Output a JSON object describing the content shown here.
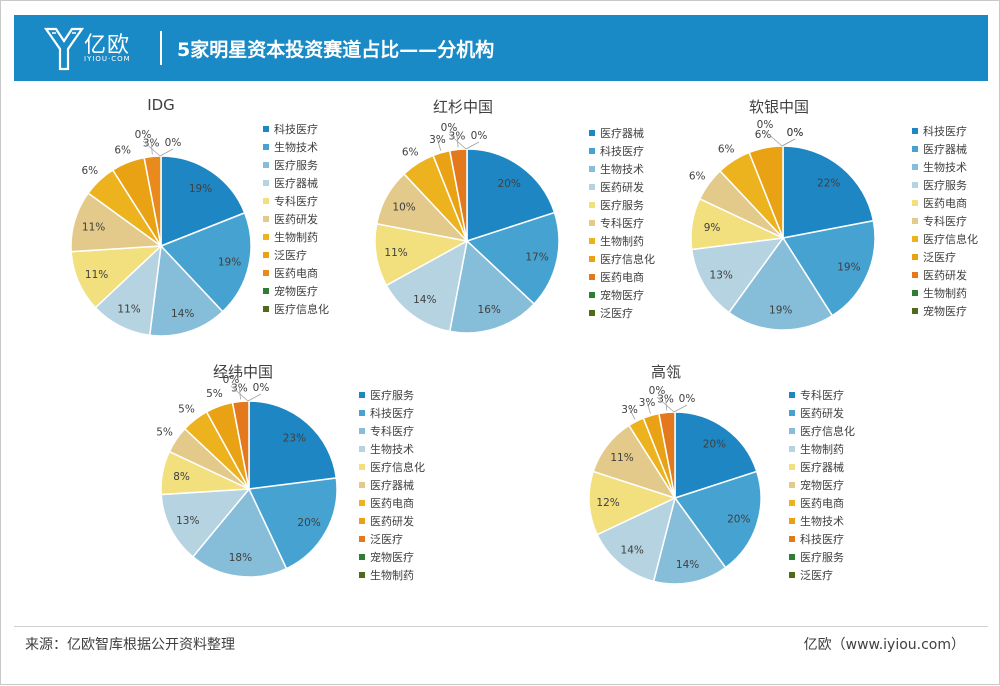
{
  "header": {
    "logo_text": "亿欧",
    "logo_sub": "IYIOU·COM",
    "title": "5家明星资本投资赛道占比——分机构"
  },
  "footer": {
    "source": "来源：亿欧智库根据公开资料整理",
    "credit": "亿欧（www.iyiou.com）"
  },
  "colors": {
    "header_bg": "#1a8ac6",
    "slice_palette": [
      "#1f86c4",
      "#46a3d1",
      "#86bdd9",
      "#b5d3e1",
      "#f2df7d",
      "#e3c98a",
      "#ecb31f",
      "#e9a213",
      "#e98b1c",
      "#e4781c",
      "#2e7d32",
      "#4e6b1c"
    ]
  },
  "chart_data": [
    {
      "type": "pie",
      "title": "IDG",
      "categories": [
        "科技医疗",
        "生物技术",
        "医疗服务",
        "医疗器械",
        "专科医疗",
        "医药研发",
        "生物制药",
        "泛医疗",
        "医药电商",
        "宠物医疗",
        "医疗信息化"
      ],
      "values": [
        19,
        19,
        14,
        11,
        11,
        11,
        6,
        6,
        3,
        0,
        0
      ],
      "labels": [
        "19%",
        "19%",
        "14%",
        "11%",
        "11%",
        "11%",
        "6%",
        "6%",
        "3%",
        "0%",
        "0%"
      ],
      "colors": [
        "#1f86c4",
        "#46a3d1",
        "#86bdd9",
        "#b5d3e1",
        "#f2df7d",
        "#e3c98a",
        "#ecb31f",
        "#e9a213",
        "#e98b1c",
        "#2e7d32",
        "#4e6b1c"
      ],
      "legend_position": "right"
    },
    {
      "type": "pie",
      "title": "红杉中国",
      "categories": [
        "医疗器械",
        "科技医疗",
        "生物技术",
        "医药研发",
        "医疗服务",
        "专科医疗",
        "生物制药",
        "医疗信息化",
        "医药电商",
        "宠物医疗",
        "泛医疗"
      ],
      "values": [
        20,
        17,
        16,
        14,
        11,
        10,
        6,
        3,
        3,
        0,
        0
      ],
      "labels": [
        "20%",
        "17%",
        "16%",
        "14%",
        "11%",
        "10%",
        "6%",
        "3%",
        "3%",
        "0%",
        "0%"
      ],
      "colors": [
        "#1f86c4",
        "#46a3d1",
        "#86bdd9",
        "#b5d3e1",
        "#f2df7d",
        "#e3c98a",
        "#ecb31f",
        "#e9a213",
        "#e4781c",
        "#2e7d32",
        "#4e6b1c"
      ],
      "legend_position": "right"
    },
    {
      "type": "pie",
      "title": "软银中国",
      "categories": [
        "科技医疗",
        "医疗器械",
        "生物技术",
        "医疗服务",
        "医药电商",
        "专科医疗",
        "医疗信息化",
        "泛医疗",
        "医药研发",
        "生物制药",
        "宠物医疗"
      ],
      "values": [
        22,
        19,
        19,
        13,
        9,
        6,
        6,
        6,
        0,
        0,
        0
      ],
      "labels": [
        "22%",
        "19%",
        "19%",
        "13%",
        "9%",
        "6%",
        "6%",
        "6%",
        "0%",
        "0%",
        "0%"
      ],
      "colors": [
        "#1f86c4",
        "#46a3d1",
        "#86bdd9",
        "#b5d3e1",
        "#f2df7d",
        "#e3c98a",
        "#ecb31f",
        "#e9a213",
        "#e4781c",
        "#2e7d32",
        "#4e6b1c"
      ],
      "legend_position": "right"
    },
    {
      "type": "pie",
      "title": "经纬中国",
      "categories": [
        "医疗服务",
        "科技医疗",
        "专科医疗",
        "生物技术",
        "医疗信息化",
        "医疗器械",
        "医药电商",
        "医药研发",
        "泛医疗",
        "宠物医疗",
        "生物制药"
      ],
      "values": [
        23,
        20,
        18,
        13,
        8,
        5,
        5,
        5,
        3,
        0,
        0
      ],
      "labels": [
        "23%",
        "20%",
        "18%",
        "13%",
        "8%",
        "5%",
        "5%",
        "5%",
        "3%",
        "0%",
        "0%"
      ],
      "colors": [
        "#1f86c4",
        "#46a3d1",
        "#86bdd9",
        "#b5d3e1",
        "#f2df7d",
        "#e3c98a",
        "#ecb31f",
        "#e9a213",
        "#e4781c",
        "#2e7d32",
        "#4e6b1c"
      ],
      "legend_position": "right"
    },
    {
      "type": "pie",
      "title": "高瓴",
      "categories": [
        "专科医疗",
        "医药研发",
        "医疗信息化",
        "生物制药",
        "医疗器械",
        "宠物医疗",
        "医药电商",
        "生物技术",
        "科技医疗",
        "医疗服务",
        "泛医疗"
      ],
      "values": [
        20,
        20,
        14,
        14,
        12,
        11,
        3,
        3,
        3,
        0,
        0
      ],
      "labels": [
        "20%",
        "20%",
        "14%",
        "14%",
        "12%",
        "11%",
        "3%",
        "3%",
        "3%",
        "0%",
        "0%"
      ],
      "colors": [
        "#1f86c4",
        "#46a3d1",
        "#86bdd9",
        "#b5d3e1",
        "#f2df7d",
        "#e3c98a",
        "#ecb31f",
        "#e9a213",
        "#e4781c",
        "#2e7d32",
        "#4e6b1c"
      ],
      "legend_position": "right"
    }
  ]
}
